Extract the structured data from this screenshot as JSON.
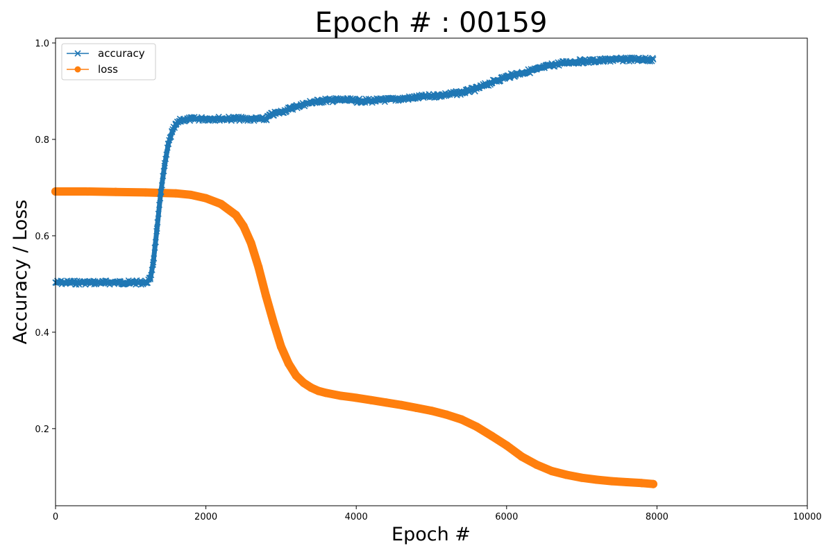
{
  "chart_data": {
    "type": "line",
    "title": "Epoch # : 00159",
    "xlabel": "Epoch #",
    "ylabel": "Accuracy / Loss",
    "xlim": [
      0,
      10000
    ],
    "ylim": [
      0.04,
      1.01
    ],
    "x_ticks": [
      0,
      2000,
      4000,
      6000,
      8000,
      10000
    ],
    "y_ticks": [
      0.2,
      0.4,
      0.6,
      0.8,
      1.0
    ],
    "grid": false,
    "legend_position": "top-left",
    "series": [
      {
        "name": "accuracy",
        "color": "#1f77b4",
        "marker": "x",
        "x": [
          0,
          400,
          800,
          1200,
          1260,
          1300,
          1350,
          1400,
          1450,
          1500,
          1550,
          1600,
          1650,
          1700,
          1800,
          2000,
          2200,
          2400,
          2600,
          2800,
          2850,
          3000,
          3200,
          3400,
          3600,
          3800,
          4000,
          4200,
          4400,
          4600,
          4800,
          5000,
          5200,
          5400,
          5600,
          5800,
          6000,
          6200,
          6400,
          6600,
          6800,
          7000,
          7200,
          7400,
          7600,
          7800,
          7950
        ],
        "y": [
          0.503,
          0.503,
          0.503,
          0.503,
          0.51,
          0.545,
          0.615,
          0.69,
          0.745,
          0.79,
          0.815,
          0.83,
          0.838,
          0.841,
          0.842,
          0.843,
          0.843,
          0.843,
          0.842,
          0.842,
          0.85,
          0.857,
          0.868,
          0.877,
          0.881,
          0.882,
          0.88,
          0.88,
          0.882,
          0.884,
          0.887,
          0.89,
          0.893,
          0.897,
          0.905,
          0.918,
          0.93,
          0.938,
          0.945,
          0.954,
          0.96,
          0.962,
          0.963,
          0.965,
          0.966,
          0.966,
          0.966
        ]
      },
      {
        "name": "loss",
        "color": "#ff7f0e",
        "marker": "o",
        "x": [
          0,
          400,
          800,
          1200,
          1600,
          1800,
          2000,
          2200,
          2400,
          2500,
          2600,
          2700,
          2800,
          2900,
          3000,
          3100,
          3200,
          3300,
          3400,
          3500,
          3600,
          3800,
          4000,
          4200,
          4400,
          4600,
          4800,
          5000,
          5200,
          5400,
          5600,
          5800,
          6000,
          6200,
          6400,
          6600,
          6800,
          7000,
          7200,
          7400,
          7600,
          7800,
          7950
        ],
        "y": [
          0.692,
          0.692,
          0.691,
          0.69,
          0.688,
          0.685,
          0.678,
          0.666,
          0.643,
          0.62,
          0.585,
          0.535,
          0.475,
          0.42,
          0.37,
          0.335,
          0.31,
          0.295,
          0.285,
          0.278,
          0.274,
          0.268,
          0.264,
          0.259,
          0.254,
          0.249,
          0.243,
          0.237,
          0.229,
          0.219,
          0.204,
          0.185,
          0.165,
          0.142,
          0.125,
          0.112,
          0.104,
          0.098,
          0.094,
          0.091,
          0.089,
          0.087,
          0.085
        ]
      }
    ]
  }
}
